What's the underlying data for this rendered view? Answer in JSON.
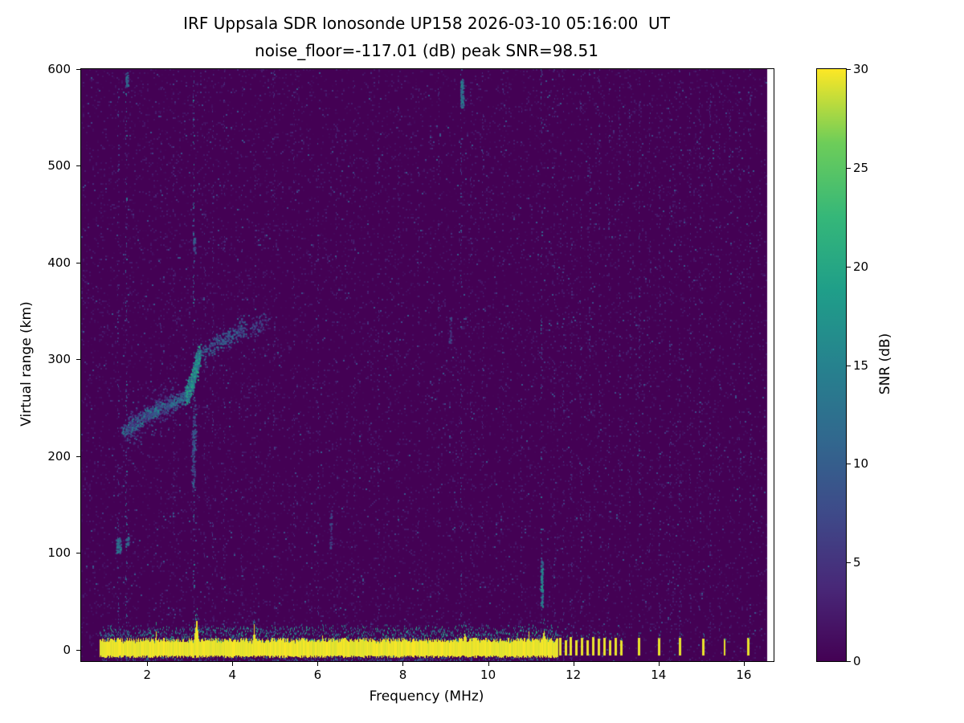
{
  "title": {
    "line1": "IRF Uppsala SDR Ionosonde UP158 2026-03-10 05:16:00  UT",
    "line2": "noise_floor=-117.01 (dB) peak SNR=98.51"
  },
  "station": "IRF Uppsala SDR Ionosonde UP158",
  "timestamp_ut": "2026-03-10 05:16:00 UT",
  "noise_floor_db": -117.01,
  "peak_snr_db": 98.51,
  "chart_data": {
    "type": "heatmap",
    "title": "IRF Uppsala SDR Ionosonde UP158 2026-03-10 05:16:00  UT\nnoise_floor=-117.01 (dB) peak SNR=98.51",
    "xlabel": "Frequency (MHz)",
    "ylabel": "Virtual range (km)",
    "colorbar_label": "SNR (dB)",
    "xlim": [
      0.45,
      16.7
    ],
    "ylim": [
      -12,
      600
    ],
    "x_ticks": [
      2,
      4,
      6,
      8,
      10,
      12,
      14,
      16
    ],
    "y_ticks": [
      0,
      100,
      200,
      300,
      400,
      500,
      600
    ],
    "colorbar_ticks": [
      0,
      5,
      10,
      15,
      20,
      25,
      30
    ],
    "colorbar_range": [
      0,
      30
    ],
    "colormap": "viridis",
    "mesh_f_end": 16.55,
    "viridis_stops": [
      [
        0.0,
        68,
        1,
        84
      ],
      [
        0.125,
        72,
        40,
        120
      ],
      [
        0.25,
        62,
        74,
        137
      ],
      [
        0.375,
        49,
        104,
        142
      ],
      [
        0.5,
        38,
        130,
        142
      ],
      [
        0.625,
        31,
        158,
        137
      ],
      [
        0.75,
        53,
        183,
        121
      ],
      [
        0.875,
        109,
        205,
        89
      ],
      [
        1.0,
        253,
        231,
        37
      ]
    ],
    "noise": {
      "speckle_p": 0.1,
      "speckle_snr_max": 2.8,
      "bright_p": 0.008,
      "bright_snr": [
        3,
        10
      ]
    },
    "ground_band": {
      "f_start": 0.88,
      "f_end": 11.62,
      "top_km": 10,
      "bottom_km": -6,
      "fringe_km": 14,
      "spikes": [
        {
          "f": 2.2,
          "w": 0.05,
          "top_km": 22
        },
        {
          "f": 3.15,
          "w": 0.08,
          "top_km": 36
        },
        {
          "f": 4.5,
          "w": 0.05,
          "top_km": 28
        },
        {
          "f": 6.1,
          "w": 0.04,
          "top_km": 18
        },
        {
          "f": 9.45,
          "w": 0.09,
          "top_km": 22
        },
        {
          "f": 10.95,
          "w": 0.05,
          "top_km": 22
        },
        {
          "f": 11.3,
          "w": 0.06,
          "top_km": 26
        }
      ]
    },
    "ground_spots": [
      {
        "f": 11.7,
        "top": 12
      },
      {
        "f": 11.82,
        "top": 10
      },
      {
        "f": 11.94,
        "top": 13
      },
      {
        "f": 12.07,
        "top": 10
      },
      {
        "f": 12.2,
        "top": 12
      },
      {
        "f": 12.33,
        "top": 10
      },
      {
        "f": 12.46,
        "top": 13
      },
      {
        "f": 12.6,
        "top": 11
      },
      {
        "f": 12.73,
        "top": 12
      },
      {
        "f": 12.87,
        "top": 10
      },
      {
        "f": 13.0,
        "top": 12
      },
      {
        "f": 13.12,
        "top": 10
      },
      {
        "f": 13.55,
        "top": 12
      },
      {
        "f": 14.02,
        "top": 12
      },
      {
        "f": 14.5,
        "top": 12
      },
      {
        "f": 15.05,
        "top": 11
      },
      {
        "f": 15.55,
        "top": 11
      },
      {
        "f": 16.1,
        "top": 12
      }
    ],
    "echo_trace": {
      "segments": [
        {
          "points": [
            [
              1.42,
              226
            ],
            [
              1.7,
              234
            ],
            [
              2.0,
              243
            ],
            [
              2.3,
              250
            ],
            [
              2.6,
              256
            ],
            [
              2.88,
              262
            ]
          ],
          "spread_f": 0.06,
          "spread_km": 7,
          "snr": [
            7,
            16
          ],
          "n": 520
        },
        {
          "points": [
            [
              1.5,
              228
            ],
            [
              2.1,
              246
            ],
            [
              2.7,
              258
            ]
          ],
          "spread_f": 0.1,
          "spread_km": 20,
          "snr": [
            3,
            8
          ],
          "n": 220
        },
        {
          "points": [
            [
              2.9,
              262
            ],
            [
              3.0,
              272
            ],
            [
              3.08,
              283
            ],
            [
              3.16,
              296
            ],
            [
              3.22,
              307
            ]
          ],
          "spread_f": 0.05,
          "spread_km": 11,
          "snr": [
            9,
            22
          ],
          "n": 480
        },
        {
          "points": [
            [
              3.3,
              306
            ],
            [
              3.55,
              315
            ],
            [
              3.8,
              322
            ],
            [
              4.05,
              328
            ],
            [
              4.3,
              333
            ]
          ],
          "spread_f": 0.07,
          "spread_km": 9,
          "snr": [
            5,
            13
          ],
          "n": 240
        },
        {
          "points": [
            [
              3.06,
              185
            ],
            [
              3.1,
              235
            ]
          ],
          "spread_f": 0.04,
          "spread_km": 28,
          "snr": [
            5,
            12
          ],
          "n": 140
        },
        {
          "points": [
            [
              4.45,
              334
            ],
            [
              4.8,
              340
            ]
          ],
          "spread_f": 0.06,
          "spread_km": 10,
          "snr": [
            4,
            9
          ],
          "n": 60
        }
      ]
    },
    "rfi_lines": [
      {
        "f": 1.32,
        "s": 0.45
      },
      {
        "f": 1.5,
        "s": 0.8
      },
      {
        "f": 2.32,
        "s": 0.3
      },
      {
        "f": 2.62,
        "s": 0.25
      },
      {
        "f": 3.09,
        "s": 0.9
      },
      {
        "f": 3.35,
        "s": 0.3
      },
      {
        "f": 3.55,
        "s": 0.35
      },
      {
        "f": 3.8,
        "s": 0.3
      },
      {
        "f": 4.22,
        "s": 0.3
      },
      {
        "f": 4.55,
        "s": 0.35
      },
      {
        "f": 4.98,
        "s": 0.3
      },
      {
        "f": 5.45,
        "s": 0.3
      },
      {
        "f": 6.01,
        "s": 0.35
      },
      {
        "f": 6.45,
        "s": 0.25
      },
      {
        "f": 6.86,
        "s": 0.3
      },
      {
        "f": 7.43,
        "s": 0.3
      },
      {
        "f": 7.9,
        "s": 0.25
      },
      {
        "f": 8.37,
        "s": 0.3
      },
      {
        "f": 8.84,
        "s": 0.3
      },
      {
        "f": 9.37,
        "s": 0.55
      },
      {
        "f": 9.6,
        "s": 0.3
      },
      {
        "f": 9.88,
        "s": 0.3
      },
      {
        "f": 10.35,
        "s": 0.25
      },
      {
        "f": 10.78,
        "s": 0.3
      },
      {
        "f": 11.25,
        "s": 0.8
      },
      {
        "f": 11.55,
        "s": 0.3
      },
      {
        "f": 11.76,
        "s": 0.35
      },
      {
        "f": 11.95,
        "s": 0.35
      },
      {
        "f": 12.17,
        "s": 0.35
      },
      {
        "f": 12.38,
        "s": 0.35
      },
      {
        "f": 12.61,
        "s": 0.35
      },
      {
        "f": 12.83,
        "s": 0.35
      },
      {
        "f": 13.08,
        "s": 0.35
      },
      {
        "f": 13.32,
        "s": 0.3
      },
      {
        "f": 13.55,
        "s": 0.35
      },
      {
        "f": 13.8,
        "s": 0.3
      },
      {
        "f": 14.02,
        "s": 0.35
      },
      {
        "f": 14.27,
        "s": 0.3
      },
      {
        "f": 14.49,
        "s": 0.35
      },
      {
        "f": 14.74,
        "s": 0.3
      },
      {
        "f": 14.97,
        "s": 0.3
      },
      {
        "f": 15.21,
        "s": 0.3
      },
      {
        "f": 15.44,
        "s": 0.3
      },
      {
        "f": 15.68,
        "s": 0.3
      },
      {
        "f": 15.91,
        "s": 0.3
      },
      {
        "f": 16.15,
        "s": 0.3
      }
    ],
    "blobs": [
      {
        "f": 1.32,
        "km": 108,
        "w": 0.12,
        "h": 16,
        "snr": [
          8,
          16
        ],
        "n": 60
      },
      {
        "f": 1.52,
        "km": 112,
        "w": 0.07,
        "h": 10,
        "snr": [
          7,
          14
        ],
        "n": 28
      },
      {
        "f": 1.52,
        "km": 590,
        "w": 0.06,
        "h": 14,
        "snr": [
          8,
          15
        ],
        "n": 30
      },
      {
        "f": 9.38,
        "km": 575,
        "w": 0.07,
        "h": 30,
        "snr": [
          8,
          17
        ],
        "n": 80
      },
      {
        "f": 11.25,
        "km": 68,
        "w": 0.05,
        "h": 48,
        "snr": [
          9,
          19
        ],
        "n": 90
      },
      {
        "f": 3.1,
        "km": 418,
        "w": 0.05,
        "h": 16,
        "snr": [
          6,
          12
        ],
        "n": 26
      },
      {
        "f": 6.3,
        "km": 125,
        "w": 0.05,
        "h": 40,
        "snr": [
          4,
          9
        ],
        "n": 30
      },
      {
        "f": 9.1,
        "km": 330,
        "w": 0.05,
        "h": 30,
        "snr": [
          4,
          9
        ],
        "n": 24
      }
    ],
    "background_color": "#440154",
    "peak_color": "#fde725"
  }
}
